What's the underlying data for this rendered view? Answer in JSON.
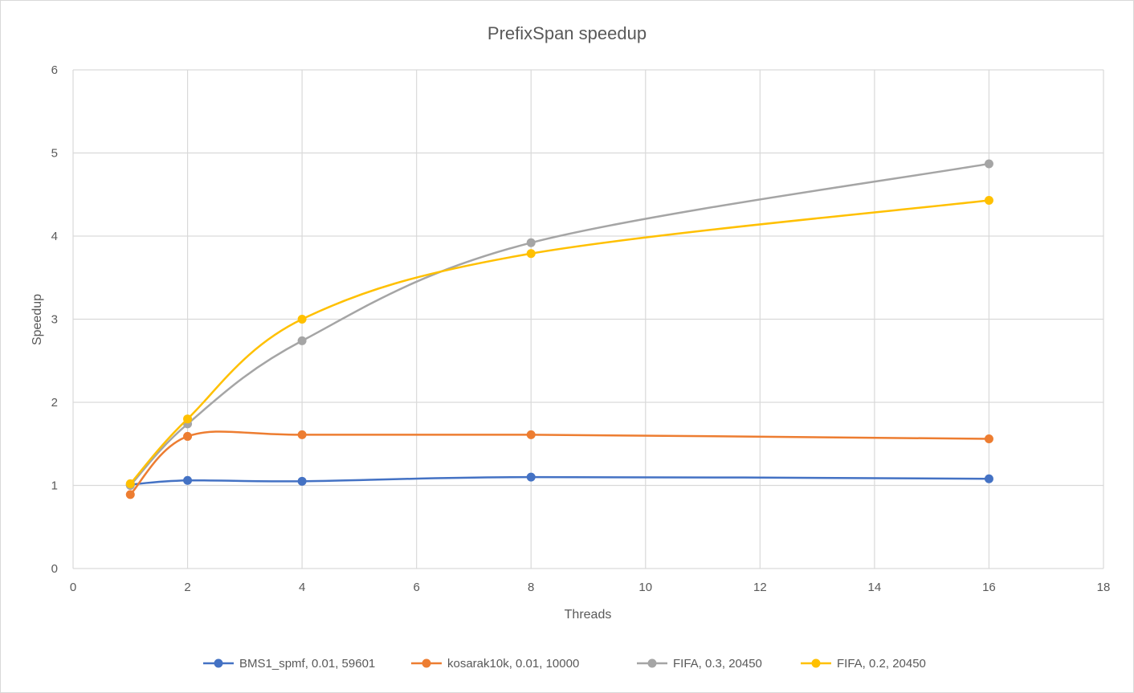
{
  "chart_data": {
    "type": "line",
    "smooth": true,
    "title": "PrefixSpan speedup",
    "xlabel": "Threads",
    "ylabel": "Speedup",
    "xlim": [
      0,
      18
    ],
    "ylim": [
      0,
      6
    ],
    "xticks": [
      0,
      2,
      4,
      6,
      8,
      10,
      12,
      14,
      16,
      18
    ],
    "yticks": [
      0,
      1,
      2,
      3,
      4,
      5,
      6
    ],
    "grid": true,
    "legend_position": "bottom",
    "series": [
      {
        "name": "BMS1_spmf, 0.01, 59601",
        "color": "#4472C4",
        "x": [
          1,
          2,
          4,
          8,
          16
        ],
        "y": [
          1.01,
          1.06,
          1.05,
          1.1,
          1.08
        ]
      },
      {
        "name": "kosarak10k, 0.01, 10000",
        "color": "#ED7D31",
        "x": [
          1,
          2,
          4,
          8,
          16
        ],
        "y": [
          0.89,
          1.59,
          1.61,
          1.61,
          1.56
        ]
      },
      {
        "name": "FIFA, 0.3, 20450",
        "color": "#A5A5A5",
        "x": [
          1,
          2,
          4,
          8,
          16
        ],
        "y": [
          1.0,
          1.74,
          2.74,
          3.92,
          4.87
        ]
      },
      {
        "name": "FIFA, 0.2, 20450",
        "color": "#FFC000",
        "x": [
          1,
          2,
          4,
          8,
          16
        ],
        "y": [
          1.02,
          1.8,
          3.0,
          3.79,
          4.43
        ]
      }
    ]
  }
}
